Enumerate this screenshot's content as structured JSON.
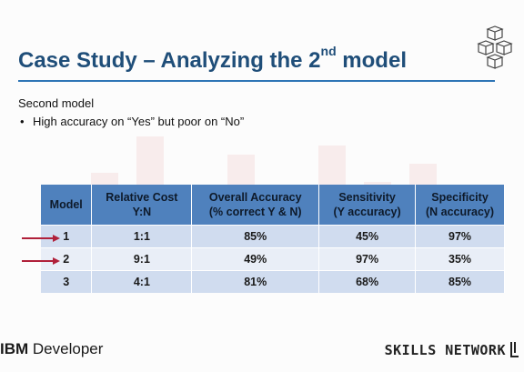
{
  "slide": {
    "title_prefix": "Case Study – Analyzing the 2",
    "title_sup": "nd",
    "title_suffix": " model",
    "subhead": "Second model",
    "bullet": "High accuracy on “Yes” but poor on “No”"
  },
  "table": {
    "headers": [
      {
        "line1": "Model",
        "line2": ""
      },
      {
        "line1": "Relative Cost",
        "line2": "Y:N"
      },
      {
        "line1": "Overall Accuracy",
        "line2": "(% correct Y & N)"
      },
      {
        "line1": "Sensitivity",
        "line2": "(Y accuracy)"
      },
      {
        "line1": "Specificity",
        "line2": "(N accuracy)"
      }
    ],
    "rows": [
      {
        "model": "1",
        "cost": "1:1",
        "overall": "85%",
        "sensitivity": "45%",
        "specificity": "97%",
        "arrow": true
      },
      {
        "model": "2",
        "cost": "9:1",
        "overall": "49%",
        "sensitivity": "97%",
        "specificity": "35%",
        "arrow": true
      },
      {
        "model": "3",
        "cost": "4:1",
        "overall": "81%",
        "sensitivity": "68%",
        "specificity": "85%",
        "arrow": false
      }
    ]
  },
  "footer": {
    "ibm": "IBM",
    "developer": " Developer",
    "skills": "SKILLS NETWORK"
  },
  "colors": {
    "title": "#1f4e79",
    "header_fill": "#4f81bd",
    "row_dark": "#d0dcef",
    "row_light": "#e9eef7",
    "arrow": "#b0203a"
  },
  "icons": {
    "corner_logo": "stacked-cubes-icon",
    "row_marker": "arrow-right-icon"
  }
}
